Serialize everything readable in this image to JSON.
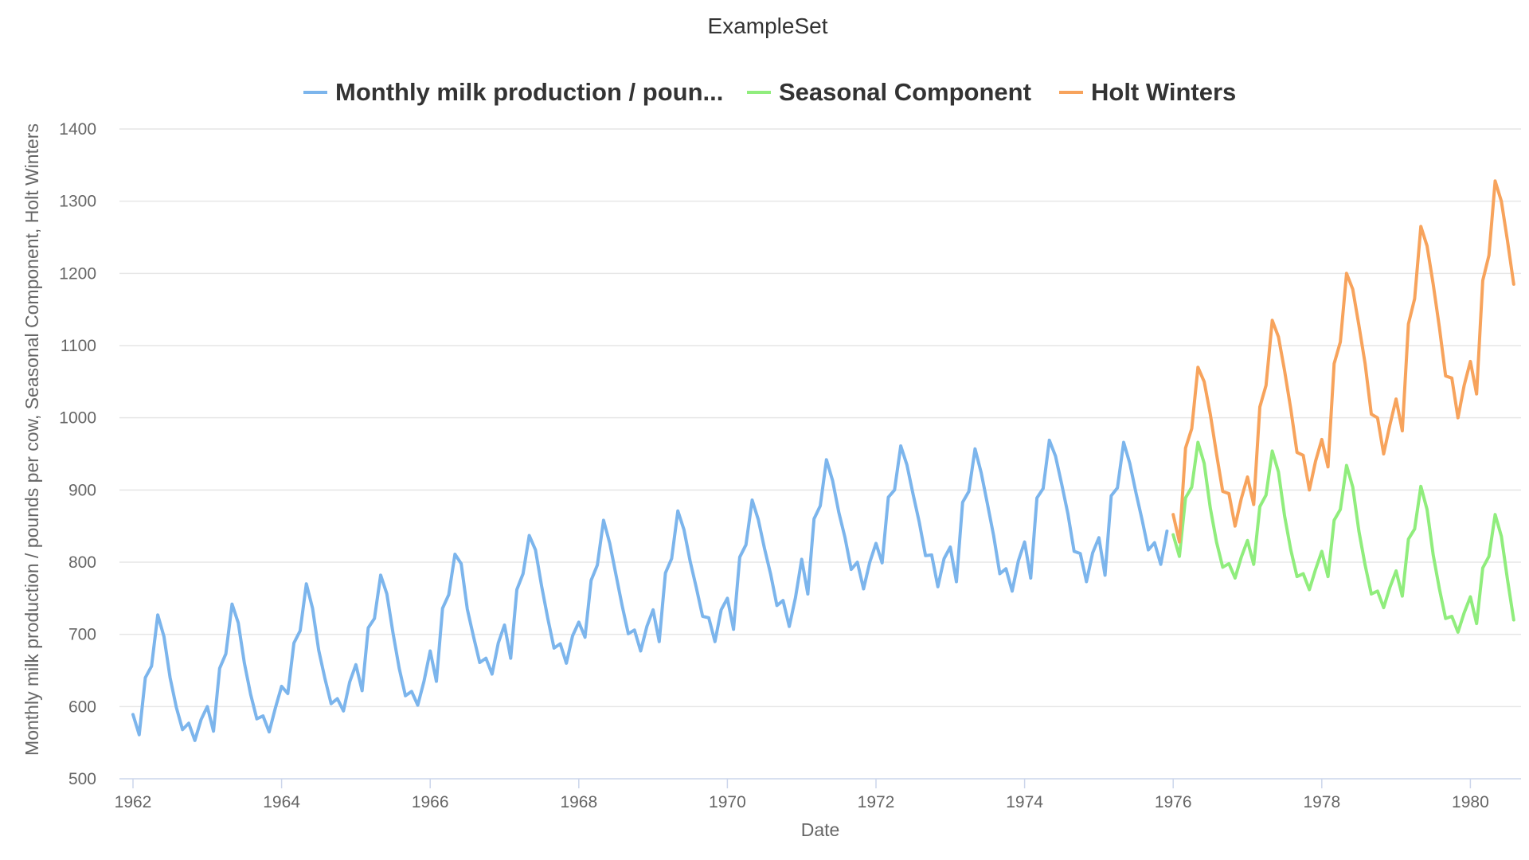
{
  "chart_data": {
    "type": "line",
    "title": "ExampleSet",
    "xlabel": "Date",
    "ylabel": "Monthly milk production / pounds per cow, Seasonal Component, Holt Winters",
    "xlim": [
      1962,
      1980.6
    ],
    "ylim": [
      500,
      1400
    ],
    "x_ticks": [
      "1962",
      "1964",
      "1966",
      "1968",
      "1970",
      "1972",
      "1974",
      "1976",
      "1978",
      "1980"
    ],
    "y_ticks": [
      "500",
      "600",
      "700",
      "800",
      "900",
      "1000",
      "1100",
      "1200",
      "1300",
      "1400"
    ],
    "grid": true,
    "legend_position": "top-center",
    "series": [
      {
        "name": "Monthly milk production / poun...",
        "color": "#7cb5ec",
        "x_start": 1962.0,
        "x_step": 0.08333,
        "values": [
          589,
          561,
          640,
          656,
          727,
          697,
          640,
          599,
          568,
          577,
          553,
          582,
          600,
          566,
          653,
          673,
          742,
          716,
          660,
          617,
          583,
          587,
          565,
          598,
          628,
          618,
          688,
          705,
          770,
          736,
          678,
          639,
          604,
          611,
          594,
          634,
          658,
          622,
          709,
          722,
          782,
          756,
          702,
          653,
          615,
          621,
          602,
          635,
          677,
          635,
          736,
          755,
          811,
          798,
          735,
          697,
          661,
          667,
          645,
          688,
          713,
          667,
          762,
          784,
          837,
          817,
          767,
          722,
          681,
          687,
          660,
          698,
          717,
          696,
          775,
          796,
          858,
          826,
          783,
          740,
          701,
          706,
          677,
          711,
          734,
          690,
          785,
          805,
          871,
          845,
          801,
          764,
          725,
          723,
          690,
          734,
          750,
          707,
          807,
          824,
          886,
          859,
          819,
          783,
          740,
          747,
          711,
          751,
          804,
          756,
          860,
          878,
          942,
          913,
          869,
          834,
          790,
          800,
          763,
          800,
          826,
          799,
          890,
          900,
          961,
          935,
          894,
          855,
          809,
          810,
          766,
          805,
          821,
          773,
          883,
          898,
          957,
          924,
          881,
          837,
          784,
          791,
          760,
          802,
          828,
          778,
          889,
          902,
          969,
          947,
          908,
          867,
          815,
          812,
          773,
          813,
          834,
          782,
          892,
          903,
          966,
          937,
          896,
          858,
          817,
          827,
          797,
          843
        ]
      },
      {
        "name": "Seasonal Component",
        "color": "#90ed7d",
        "x_start": 1976.0,
        "x_step": 0.08333,
        "values": [
          838,
          808,
          889,
          904,
          966,
          937,
          875,
          828,
          793,
          798,
          778,
          807,
          830,
          797,
          877,
          893,
          954,
          925,
          864,
          817,
          780,
          784,
          762,
          790,
          815,
          780,
          858,
          873,
          934,
          904,
          843,
          796,
          756,
          760,
          737,
          765,
          788,
          753,
          832,
          846,
          905,
          873,
          810,
          763,
          722,
          725,
          703,
          730,
          752,
          715,
          792,
          808,
          866,
          836,
          776,
          720
        ]
      },
      {
        "name": "Holt Winters",
        "color": "#f7a35c",
        "x_start": 1976.0,
        "x_step": 0.08333,
        "values": [
          866,
          828,
          958,
          985,
          1070,
          1050,
          1005,
          950,
          898,
          895,
          850,
          888,
          918,
          880,
          1015,
          1045,
          1135,
          1112,
          1065,
          1012,
          952,
          948,
          900,
          940,
          970,
          932,
          1075,
          1105,
          1200,
          1178,
          1128,
          1075,
          1005,
          1000,
          950,
          990,
          1026,
          982,
          1130,
          1165,
          1265,
          1238,
          1185,
          1125,
          1058,
          1055,
          1000,
          1045,
          1078,
          1033,
          1190,
          1225,
          1328,
          1300,
          1245,
          1185
        ]
      }
    ]
  }
}
